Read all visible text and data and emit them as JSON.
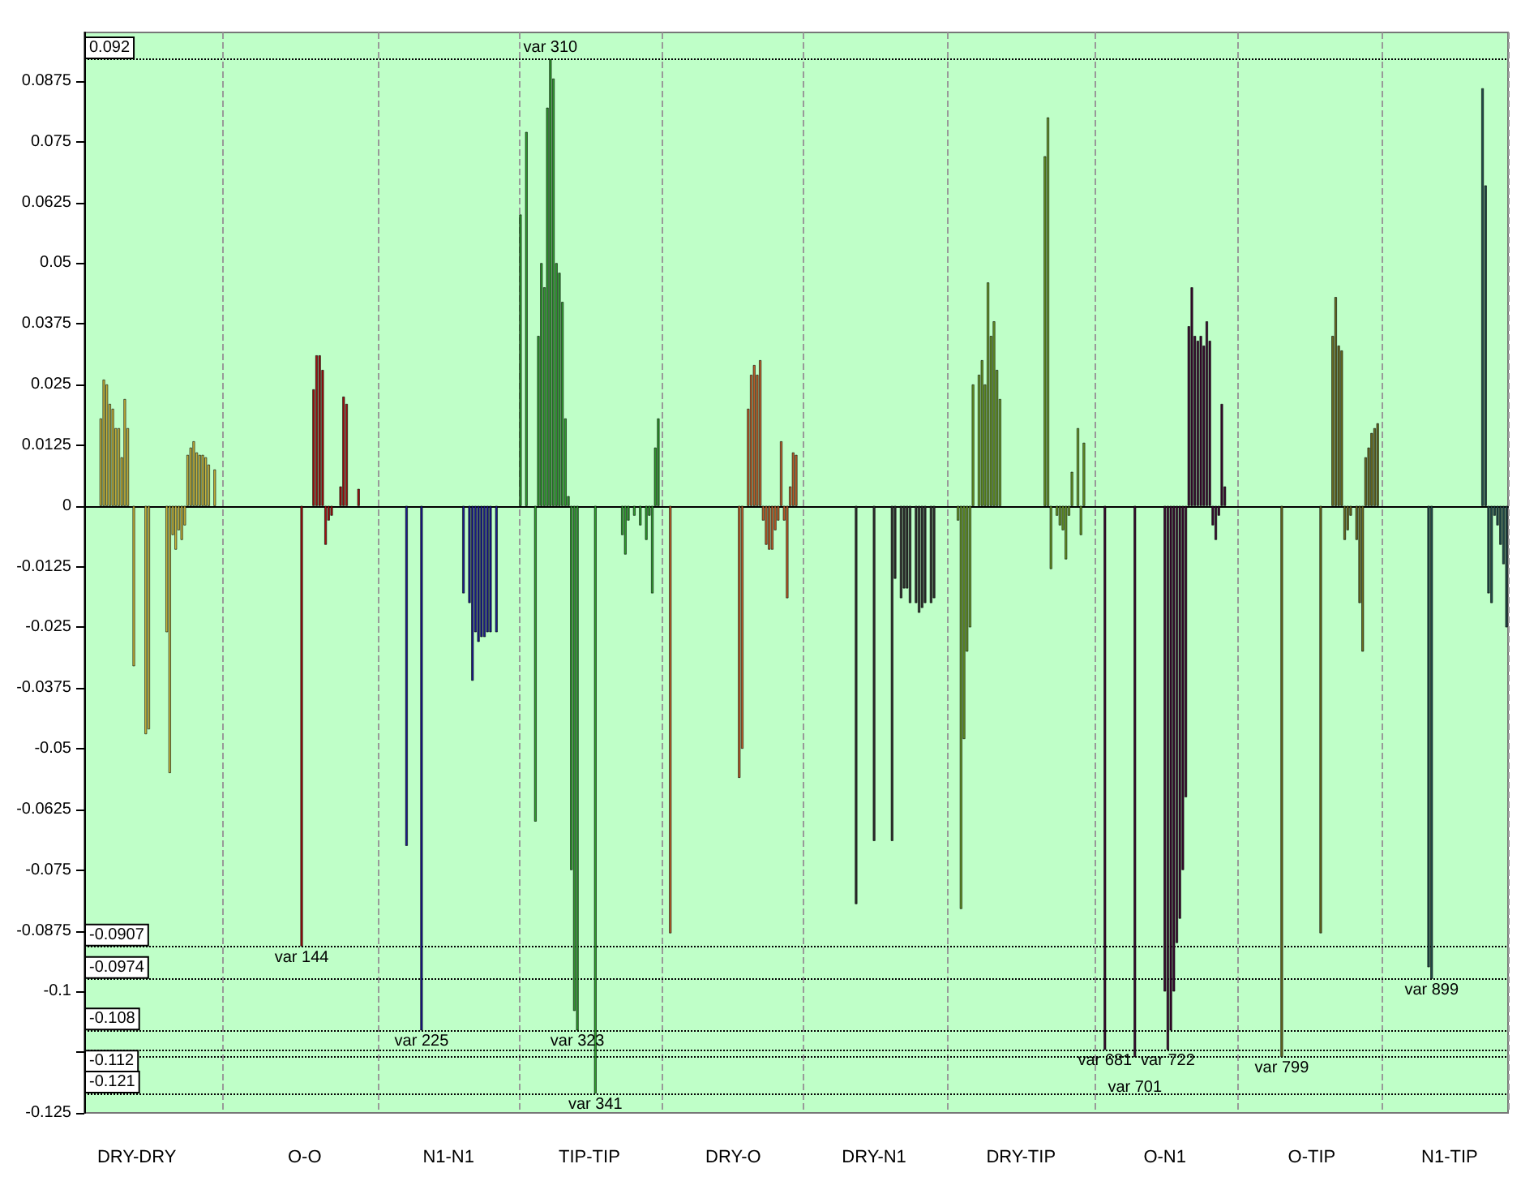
{
  "chart_data": {
    "type": "bar",
    "categories": [
      null,
      null,
      null,
      null,
      null,
      null,
      null,
      null,
      null,
      null,
      null,
      null,
      null,
      null,
      null,
      null,
      null,
      "DRY-DRY",
      null,
      null,
      null,
      null,
      null,
      null,
      null,
      null,
      null,
      null,
      null,
      null,
      null,
      null,
      null,
      null,
      null,
      null,
      null,
      null,
      null,
      null,
      null,
      null,
      null,
      null,
      null,
      null,
      null,
      null,
      null,
      null,
      null,
      null,
      null,
      null,
      null,
      null,
      null,
      null,
      null,
      null,
      null,
      null,
      null,
      null,
      null,
      null,
      null,
      null,
      null,
      null,
      null,
      null,
      null,
      "O-O",
      null,
      null,
      null,
      null,
      null,
      null,
      null,
      null,
      null,
      null,
      null,
      null,
      null,
      null,
      null,
      null,
      null,
      null,
      null,
      null,
      null,
      null,
      null,
      null,
      null,
      null,
      null,
      null,
      null,
      null,
      null,
      null,
      null,
      null,
      null,
      null,
      null,
      null,
      null,
      null,
      null,
      null,
      null,
      null,
      null,
      null,
      null,
      "N1-N1",
      null,
      null,
      null,
      null,
      null,
      null,
      null,
      null,
      null,
      null,
      null,
      null,
      null,
      null,
      null,
      null,
      null,
      null,
      null,
      null,
      null,
      null,
      null,
      null,
      null,
      null,
      null,
      null,
      null,
      null,
      null,
      null,
      null,
      null,
      null,
      null,
      null,
      null,
      null,
      null,
      null,
      null,
      null,
      null,
      null,
      null,
      "TIP-TIP",
      null,
      null,
      null,
      null,
      null,
      null,
      null,
      null,
      null,
      null,
      null,
      null,
      null,
      null,
      null,
      null,
      null,
      null,
      null,
      null,
      null,
      null,
      null,
      null,
      null,
      null,
      null,
      null,
      null,
      null,
      null,
      null,
      null,
      null,
      null,
      null,
      null,
      null,
      null,
      null,
      null,
      null,
      null,
      null,
      null,
      null,
      null,
      "DRY-O",
      null,
      null,
      null,
      null,
      null,
      null,
      null,
      null,
      null,
      null,
      null,
      null,
      null,
      null,
      null,
      null,
      null,
      null,
      null,
      null,
      null,
      null,
      null,
      null,
      null,
      null,
      null,
      null,
      null,
      null,
      null,
      null,
      null,
      null,
      null,
      null,
      null,
      null,
      null,
      null,
      null,
      null,
      null,
      null,
      null,
      null,
      "DRY-N1",
      null,
      null,
      null,
      null,
      null,
      null,
      null,
      null,
      null,
      null,
      null,
      null,
      null,
      null,
      null,
      null,
      null,
      null,
      null,
      null,
      null,
      null,
      null,
      null,
      null,
      null,
      null,
      null,
      null,
      null,
      null,
      null,
      null,
      null,
      null,
      null,
      null,
      null,
      null,
      null,
      null,
      null,
      null,
      null,
      null,
      null,
      null,
      null,
      "DRY-TIP",
      null,
      null,
      null,
      null,
      null,
      null,
      null,
      null,
      null,
      null,
      null,
      null,
      null,
      null,
      null,
      null,
      null,
      null,
      null,
      null,
      null,
      null,
      null,
      null,
      null,
      null,
      null,
      null,
      null,
      null,
      null,
      null,
      null,
      null,
      null,
      null,
      null,
      null,
      null,
      null,
      null,
      null,
      null,
      null,
      null,
      null,
      null,
      "O-N1",
      null,
      null,
      null,
      null,
      null,
      null,
      null,
      null,
      null,
      null,
      null,
      null,
      null,
      null,
      null,
      null,
      null,
      null,
      null,
      null,
      null,
      null,
      null,
      null,
      null,
      null,
      null,
      null,
      null,
      null,
      null,
      null,
      null,
      null,
      null,
      null,
      null,
      null,
      null,
      null,
      null,
      null,
      null,
      null,
      null,
      null,
      null,
      null,
      "O-TIP",
      null,
      null,
      null,
      null,
      null,
      null,
      null,
      null,
      null,
      null,
      null,
      null,
      null,
      null,
      null,
      null,
      null,
      null,
      null,
      null,
      null,
      null,
      null,
      null,
      null,
      null,
      null,
      null,
      null,
      null,
      null,
      null,
      null,
      null,
      null,
      null,
      null,
      null,
      null,
      null,
      null,
      null,
      null,
      null,
      null,
      "N1-TIP",
      null,
      null,
      null,
      null,
      null,
      null,
      null,
      null,
      null,
      null,
      null,
      null,
      null,
      null,
      null,
      null,
      null,
      null,
      null
    ],
    "values": [
      null,
      null,
      null,
      null,
      null,
      0.018,
      0.026,
      0.025,
      0.021,
      0.02,
      0.016,
      0.016,
      0.01,
      0.022,
      0.016,
      null,
      -0.033,
      null,
      null,
      null,
      -0.047,
      -0.046,
      null,
      null,
      null,
      null,
      null,
      -0.026,
      -0.055,
      -0.006,
      -0.009,
      -0.005,
      -0.007,
      -0.004,
      0.0105,
      0.012,
      0.0133,
      0.011,
      0.0105,
      0.0105,
      0.01,
      0.0085,
      null,
      0.0075,
      null,
      null,
      null,
      null,
      null,
      null,
      null,
      null,
      null,
      null,
      null,
      null,
      null,
      null,
      null,
      null,
      null,
      null,
      null,
      null,
      null,
      null,
      null,
      null,
      null,
      null,
      null,
      null,
      -0.0907,
      null,
      null,
      null,
      0.024,
      0.031,
      0.031,
      0.028,
      -0.008,
      -0.003,
      -0.002,
      null,
      null,
      0.004,
      0.0225,
      0.021,
      null,
      null,
      null,
      0.0035,
      null,
      null,
      null,
      null,
      null,
      null,
      null,
      null,
      null,
      null,
      null,
      null,
      null,
      null,
      null,
      -0.07,
      null,
      null,
      null,
      null,
      -0.108,
      null,
      null,
      null,
      null,
      null,
      null,
      null,
      null,
      null,
      null,
      null,
      null,
      null,
      -0.018,
      null,
      -0.02,
      -0.036,
      -0.026,
      -0.028,
      -0.027,
      -0.027,
      -0.026,
      -0.026,
      null,
      -0.026,
      null,
      null,
      null,
      null,
      null,
      null,
      null,
      0.06,
      null,
      0.077,
      null,
      null,
      -0.065,
      0.035,
      0.05,
      0.045,
      0.082,
      0.092,
      0.088,
      0.05,
      0.048,
      0.042,
      0.018,
      0.002,
      -0.075,
      -0.104,
      -0.108,
      null,
      null,
      null,
      null,
      null,
      -0.121,
      null,
      null,
      null,
      null,
      null,
      null,
      null,
      null,
      -0.006,
      -0.01,
      -0.003,
      null,
      -0.002,
      null,
      -0.004,
      null,
      -0.007,
      -0.002,
      -0.018,
      0.012,
      0.018,
      null,
      null,
      null,
      -0.088,
      null,
      null,
      null,
      null,
      null,
      null,
      null,
      null,
      null,
      null,
      null,
      null,
      null,
      null,
      null,
      null,
      null,
      null,
      null,
      null,
      null,
      null,
      -0.056,
      -0.05,
      null,
      0.02,
      0.027,
      0.029,
      0.027,
      0.03,
      -0.003,
      -0.008,
      -0.009,
      -0.009,
      -0.005,
      -0.003,
      0.0133,
      -0.003,
      -0.019,
      0.004,
      0.011,
      0.0105,
      null,
      null,
      null,
      null,
      null,
      null,
      null,
      null,
      null,
      null,
      null,
      null,
      null,
      null,
      null,
      null,
      null,
      null,
      null,
      -0.082,
      null,
      null,
      null,
      null,
      null,
      -0.069,
      null,
      null,
      null,
      null,
      null,
      -0.069,
      -0.015,
      null,
      -0.019,
      -0.017,
      -0.017,
      -0.02,
      null,
      -0.02,
      -0.022,
      -0.021,
      -0.02,
      null,
      -0.02,
      -0.019,
      null,
      null,
      null,
      null,
      null,
      null,
      null,
      -0.003,
      -0.083,
      -0.048,
      -0.03,
      -0.025,
      0.025,
      null,
      0.027,
      0.03,
      0.025,
      0.046,
      0.035,
      0.038,
      0.028,
      0.022,
      null,
      null,
      null,
      null,
      null,
      null,
      null,
      null,
      null,
      null,
      null,
      null,
      null,
      null,
      0.072,
      0.08,
      -0.013,
      null,
      -0.002,
      -0.004,
      -0.005,
      -0.011,
      -0.002,
      0.007,
      null,
      0.016,
      -0.006,
      0.013,
      null,
      null,
      null,
      null,
      null,
      null,
      -0.112,
      null,
      null,
      null,
      null,
      null,
      null,
      null,
      null,
      null,
      -0.1135,
      null,
      null,
      null,
      null,
      null,
      null,
      null,
      null,
      null,
      -0.1,
      -0.112,
      -0.108,
      -0.1,
      -0.09,
      -0.085,
      -0.075,
      -0.06,
      0.037,
      0.045,
      0.035,
      0.034,
      0.035,
      0.033,
      0.038,
      0.034,
      -0.004,
      -0.007,
      -0.002,
      0.021,
      0.004,
      null,
      null,
      null,
      null,
      null,
      null,
      null,
      null,
      null,
      null,
      null,
      null,
      null,
      null,
      null,
      null,
      null,
      null,
      -0.1135,
      null,
      null,
      null,
      null,
      null,
      null,
      null,
      null,
      null,
      null,
      null,
      null,
      -0.088,
      null,
      null,
      null,
      0.035,
      0.043,
      0.033,
      0.032,
      -0.007,
      -0.005,
      -0.002,
      null,
      -0.007,
      -0.02,
      -0.03,
      0.01,
      0.012,
      0.015,
      0.016,
      0.017,
      null,
      null,
      null,
      null,
      null,
      null,
      null,
      null,
      null,
      null,
      null,
      null,
      null,
      null,
      null,
      null,
      -0.095,
      -0.0974,
      null,
      null,
      null,
      null,
      null,
      null,
      null,
      null,
      null,
      null,
      null,
      null,
      null,
      null,
      null,
      null,
      0.086,
      0.066,
      -0.018,
      -0.02,
      -0.002,
      -0.004,
      -0.008,
      -0.012,
      -0.025
    ],
    "colors": [
      null,
      null,
      null,
      null,
      null,
      "#c8b43c",
      "#c8b43c",
      "#c8b43c",
      "#c8b43c",
      "#c8b43c",
      "#c8b43c",
      "#c8b43c",
      "#c8b43c",
      "#c8b43c",
      "#c8b43c",
      null,
      "#c8b43c",
      null,
      null,
      null,
      "#c8b43c",
      "#c8b43c",
      null,
      null,
      null,
      null,
      null,
      "#c8b43c",
      "#c8b43c",
      "#c8b43c",
      "#c8b43c",
      "#c8b43c",
      "#c8b43c",
      "#c8b43c",
      "#c8b43c",
      "#c8b43c",
      "#c8b43c",
      "#c8b43c",
      "#c8b43c",
      "#c8b43c",
      "#c8b43c",
      "#c8b43c",
      null,
      "#c8b43c",
      null,
      null,
      null,
      null,
      null,
      null,
      null,
      null,
      null,
      null,
      null,
      null,
      null,
      null,
      null,
      null,
      null,
      null,
      null,
      null,
      null,
      null,
      null,
      null,
      null,
      null,
      null,
      null,
      "#a01010",
      null,
      null,
      null,
      "#a01010",
      "#a01010",
      "#a01010",
      "#a01010",
      "#a01010",
      "#a01010",
      "#a01010",
      null,
      null,
      "#a01010",
      "#a01010",
      "#a01010",
      null,
      null,
      null,
      "#a01010",
      null,
      null,
      null,
      null,
      null,
      null,
      null,
      null,
      null,
      null,
      null,
      null,
      null,
      null,
      null,
      "#1a1a8c",
      null,
      null,
      null,
      null,
      "#1a1a8c",
      null,
      null,
      null,
      null,
      null,
      null,
      null,
      null,
      null,
      null,
      null,
      null,
      null,
      "#1a1a8c",
      null,
      "#1a1a8c",
      "#1a1a8c",
      "#1a1a8c",
      "#1a1a8c",
      "#1a1a8c",
      "#1a1a8c",
      "#1a1a8c",
      "#1a1a8c",
      null,
      "#1a1a8c",
      null,
      null,
      null,
      null,
      null,
      null,
      null,
      "#2e9a2e",
      null,
      "#2e9a2e",
      null,
      null,
      "#2e9a2e",
      "#2e9a2e",
      "#2e9a2e",
      "#2e9a2e",
      "#2e9a2e",
      "#2e9a2e",
      "#2e9a2e",
      "#2e9a2e",
      "#2e9a2e",
      "#2e9a2e",
      "#2e9a2e",
      "#2e9a2e",
      "#2e9a2e",
      "#2e9a2e",
      "#2e9a2e",
      null,
      null,
      null,
      null,
      null,
      "#2e9a2e",
      null,
      null,
      null,
      null,
      null,
      null,
      null,
      null,
      "#2e9a2e",
      "#2e9a2e",
      "#2e9a2e",
      null,
      "#2e9a2e",
      null,
      "#2e9a2e",
      null,
      "#2e9a2e",
      "#2e9a2e",
      "#2e9a2e",
      "#2e9a2e",
      "#2e9a2e",
      null,
      null,
      null,
      "#c0602a",
      null,
      null,
      null,
      null,
      null,
      null,
      null,
      null,
      null,
      null,
      null,
      null,
      null,
      null,
      null,
      null,
      null,
      null,
      null,
      null,
      null,
      null,
      "#c0602a",
      "#c0602a",
      null,
      "#c0602a",
      "#c0602a",
      "#c0602a",
      "#c0602a",
      "#c0602a",
      "#c0602a",
      "#c0602a",
      "#c0602a",
      "#c0602a",
      "#c0602a",
      "#c0602a",
      "#c0602a",
      "#c0602a",
      "#c0602a",
      "#c0602a",
      "#c0602a",
      "#c0602a",
      null,
      null,
      null,
      null,
      null,
      null,
      null,
      null,
      null,
      null,
      null,
      null,
      null,
      null,
      null,
      null,
      null,
      null,
      null,
      "#303030",
      null,
      null,
      null,
      null,
      null,
      "#303030",
      null,
      null,
      null,
      null,
      null,
      "#303030",
      "#303030",
      null,
      "#303030",
      "#303030",
      "#303030",
      "#303030",
      null,
      "#303030",
      "#303030",
      "#303030",
      "#303030",
      null,
      "#303030",
      "#303030",
      null,
      null,
      null,
      null,
      null,
      null,
      null,
      "#6a9a28",
      "#6a9a28",
      "#6a9a28",
      "#6a9a28",
      "#6a9a28",
      "#6a9a28",
      null,
      "#6a9a28",
      "#6a9a28",
      "#6a9a28",
      "#6a9a28",
      "#6a9a28",
      "#6a9a28",
      "#6a9a28",
      "#6a9a28",
      null,
      null,
      null,
      null,
      null,
      null,
      null,
      null,
      null,
      null,
      null,
      null,
      null,
      null,
      "#6a9a28",
      "#6a9a28",
      "#6a9a28",
      null,
      "#6a9a28",
      "#6a9a28",
      "#6a9a28",
      "#6a9a28",
      "#6a9a28",
      "#6a9a28",
      null,
      "#6a9a28",
      "#6a9a28",
      "#6a9a28",
      null,
      null,
      null,
      null,
      null,
      null,
      "#3a0a30",
      null,
      null,
      null,
      null,
      null,
      null,
      null,
      null,
      null,
      "#3a0a30",
      null,
      null,
      null,
      null,
      null,
      null,
      null,
      null,
      null,
      "#3a0a30",
      "#3a0a30",
      "#3a0a30",
      "#3a0a30",
      "#3a0a30",
      "#3a0a30",
      "#3a0a30",
      "#3a0a30",
      "#3a0a30",
      "#3a0a30",
      "#3a0a30",
      "#3a0a30",
      "#3a0a30",
      "#3a0a30",
      "#3a0a30",
      "#3a0a30",
      "#3a0a30",
      "#3a0a30",
      "#3a0a30",
      "#3a0a30",
      "#3a0a30",
      null,
      null,
      null,
      null,
      null,
      null,
      null,
      null,
      null,
      null,
      null,
      null,
      null,
      null,
      null,
      null,
      null,
      null,
      "#6a6a20",
      null,
      null,
      null,
      null,
      null,
      null,
      null,
      null,
      null,
      null,
      null,
      null,
      "#6a6a20",
      null,
      null,
      null,
      "#6a6a20",
      "#6a6a20",
      "#6a6a20",
      "#6a6a20",
      "#6a6a20",
      "#6a6a20",
      "#6a6a20",
      null,
      "#6a6a20",
      "#6a6a20",
      "#6a6a20",
      "#6a6a20",
      "#6a6a20",
      "#6a6a20",
      "#6a6a20",
      "#6a6a20",
      null,
      null,
      null,
      null,
      null,
      null,
      null,
      null,
      null,
      null,
      null,
      null,
      null,
      null,
      null,
      null,
      "#204848",
      "#204848",
      null,
      null,
      null,
      null,
      null,
      null,
      null,
      null,
      null,
      null,
      null,
      null,
      null,
      null,
      null,
      null,
      "#204848",
      "#204848",
      "#204848",
      "#204848",
      "#204848",
      "#204848",
      "#204848",
      "#204848",
      "#204848"
    ],
    "value_labels": [
      null,
      null,
      null,
      null,
      null,
      null,
      null,
      null,
      null,
      null,
      null,
      null,
      null,
      null,
      null,
      null,
      null,
      null,
      null,
      null,
      null,
      null,
      null,
      null,
      null,
      null,
      null,
      null,
      null,
      null,
      null,
      null,
      null,
      null,
      null,
      null,
      null,
      null,
      null,
      null,
      null,
      null,
      null,
      null,
      null,
      null,
      null,
      null,
      null,
      null,
      null,
      null,
      null,
      null,
      null,
      null,
      null,
      null,
      null,
      null,
      null,
      null,
      null,
      null,
      null,
      null,
      null,
      null,
      null,
      null,
      null,
      null,
      "var 144",
      null,
      null,
      null,
      null,
      null,
      null,
      null,
      null,
      null,
      null,
      null,
      null,
      null,
      null,
      null,
      null,
      null,
      null,
      null,
      null,
      null,
      null,
      null,
      null,
      null,
      null,
      null,
      null,
      null,
      null,
      null,
      null,
      null,
      null,
      null,
      null,
      null,
      null,
      null,
      "var 225",
      null,
      null,
      null,
      null,
      null,
      null,
      null,
      null,
      null,
      null,
      null,
      null,
      null,
      null,
      null,
      null,
      null,
      null,
      null,
      null,
      null,
      null,
      null,
      null,
      null,
      null,
      null,
      null,
      null,
      null,
      null,
      null,
      null,
      null,
      null,
      null,
      null,
      null,
      null,
      null,
      null,
      null,
      "var 310",
      null,
      null,
      null,
      null,
      null,
      null,
      null,
      null,
      "var 323",
      null,
      null,
      null,
      null,
      null,
      "var 341",
      null,
      null,
      null,
      null,
      null,
      null,
      null,
      null,
      null,
      null,
      null,
      null,
      null,
      null,
      null,
      null,
      null,
      null,
      null,
      null,
      null,
      null,
      null,
      null,
      null,
      null,
      null,
      null,
      null,
      null,
      null,
      null,
      null,
      null,
      null,
      null,
      null,
      null,
      null,
      null,
      null,
      null,
      null,
      null,
      null,
      null,
      null,
      null,
      null,
      null,
      null,
      null,
      null,
      null,
      null,
      null,
      null,
      null,
      null,
      null,
      null,
      null,
      null,
      null,
      null,
      null,
      null,
      null,
      null,
      null,
      null,
      null,
      null,
      null,
      null,
      null,
      null,
      null,
      null,
      null,
      null,
      null,
      null,
      null,
      null,
      null,
      null,
      null,
      null,
      null,
      null,
      null,
      null,
      null,
      null,
      null,
      null,
      null,
      null,
      null,
      null,
      null,
      null,
      null,
      null,
      null,
      null,
      null,
      null,
      null,
      null,
      null,
      null,
      null,
      null,
      null,
      null,
      null,
      null,
      null,
      null,
      null,
      null,
      null,
      null,
      null,
      null,
      null,
      null,
      null,
      null,
      null,
      null,
      null,
      null,
      null,
      null,
      null,
      null,
      null,
      null,
      null,
      null,
      null,
      null,
      null,
      null,
      null,
      null,
      null,
      null,
      null,
      null,
      null,
      null,
      null,
      null,
      null,
      null,
      null,
      null,
      null,
      null,
      null,
      null,
      null,
      null,
      null,
      null,
      "var 681",
      null,
      null,
      null,
      null,
      null,
      null,
      null,
      null,
      null,
      "var 701",
      null,
      null,
      null,
      null,
      null,
      null,
      null,
      null,
      null,
      null,
      "var 722",
      null,
      null,
      null,
      null,
      null,
      null,
      null,
      null,
      null,
      null,
      null,
      null,
      null,
      null,
      null,
      null,
      null,
      null,
      null,
      null,
      null,
      null,
      null,
      null,
      null,
      null,
      null,
      null,
      null,
      null,
      null,
      null,
      null,
      null,
      null,
      null,
      null,
      "var 799",
      null,
      null,
      null,
      null,
      null,
      null,
      null,
      null,
      null,
      null,
      null,
      null,
      null,
      null,
      null,
      null,
      null,
      null,
      null,
      null,
      null,
      null,
      null,
      null,
      null,
      null,
      null,
      null,
      null,
      null,
      null,
      null,
      null,
      null,
      null,
      null,
      null,
      null,
      null,
      null,
      null,
      null,
      null,
      null,
      null,
      null,
      null,
      null,
      null,
      "var 899",
      null,
      null,
      null,
      null,
      null,
      null,
      null,
      null,
      null,
      null,
      null,
      null,
      null,
      null,
      null,
      null,
      null,
      null,
      null,
      null,
      null,
      null,
      null,
      null,
      null
    ],
    "ylim": [
      -0.125,
      0.0975
    ],
    "yticks": [
      0.0875,
      0.075,
      0.0625,
      0.05,
      0.0375,
      0.025,
      0.0125,
      0,
      -0.0125,
      -0.025,
      -0.0375,
      -0.05,
      -0.0625,
      -0.075,
      -0.0875,
      -0.1,
      {
        "value": -0.1125,
        "label": null
      },
      -0.125
    ],
    "grid": "x",
    "ref_lines": [
      {
        "axis": "y",
        "value": 0.092,
        "label": "0.092",
        "color": "#000000",
        "line_style": "dotted"
      },
      {
        "axis": "y",
        "value": -0.0907,
        "label": "-0.0907",
        "color": "#000000",
        "line_style": "dotted"
      },
      {
        "axis": "y",
        "value": -0.0974,
        "label": "-0.0974",
        "color": "#000000",
        "line_style": "dotted"
      },
      {
        "axis": "y",
        "value": -0.108,
        "label": "-0.108",
        "color": "#000000",
        "line_style": "dotted"
      },
      {
        "axis": "y",
        "value": -0.112,
        "label": "-0.112",
        "color": "#000000",
        "line_style": "dotted"
      },
      {
        "axis": "y",
        "value": -0.1135,
        "color": "#000000",
        "line_style": "dotted"
      },
      {
        "axis": "y",
        "value": -0.121,
        "label": "-0.121",
        "color": "#000000",
        "line_style": "dotted"
      }
    ]
  }
}
